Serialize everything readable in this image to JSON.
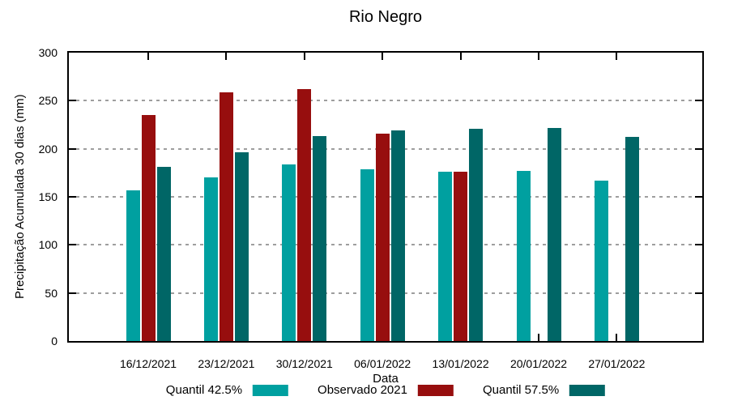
{
  "title": "Rio Negro",
  "chart_data": {
    "type": "bar",
    "title": "Rio Negro",
    "xlabel": "Data",
    "ylabel": "Precipitação Acumulada 30 dias (mm)",
    "ylim": [
      0,
      300
    ],
    "yticks": [
      0,
      50,
      100,
      150,
      200,
      250,
      300
    ],
    "grid": true,
    "legend_position": "bottom",
    "categories": [
      "16/12/2021",
      "23/12/2021",
      "30/12/2021",
      "06/01/2022",
      "13/01/2022",
      "20/01/2022",
      "27/01/2022"
    ],
    "series": [
      {
        "name": "Quantil 42.5%",
        "color": "#00A0A0",
        "values": [
          157,
          170,
          184,
          179,
          176,
          177,
          167
        ]
      },
      {
        "name": "Observado 2021",
        "color": "#970E0E",
        "values": [
          235,
          259,
          262,
          216,
          176,
          null,
          null
        ]
      },
      {
        "name": "Quantil 57.5%",
        "color": "#006666",
        "values": [
          181,
          196,
          213,
          219,
          221,
          222,
          212
        ]
      }
    ]
  },
  "colors": {
    "axis": "#000000",
    "gridline": "#9e9e9e",
    "background": "#ffffff"
  }
}
